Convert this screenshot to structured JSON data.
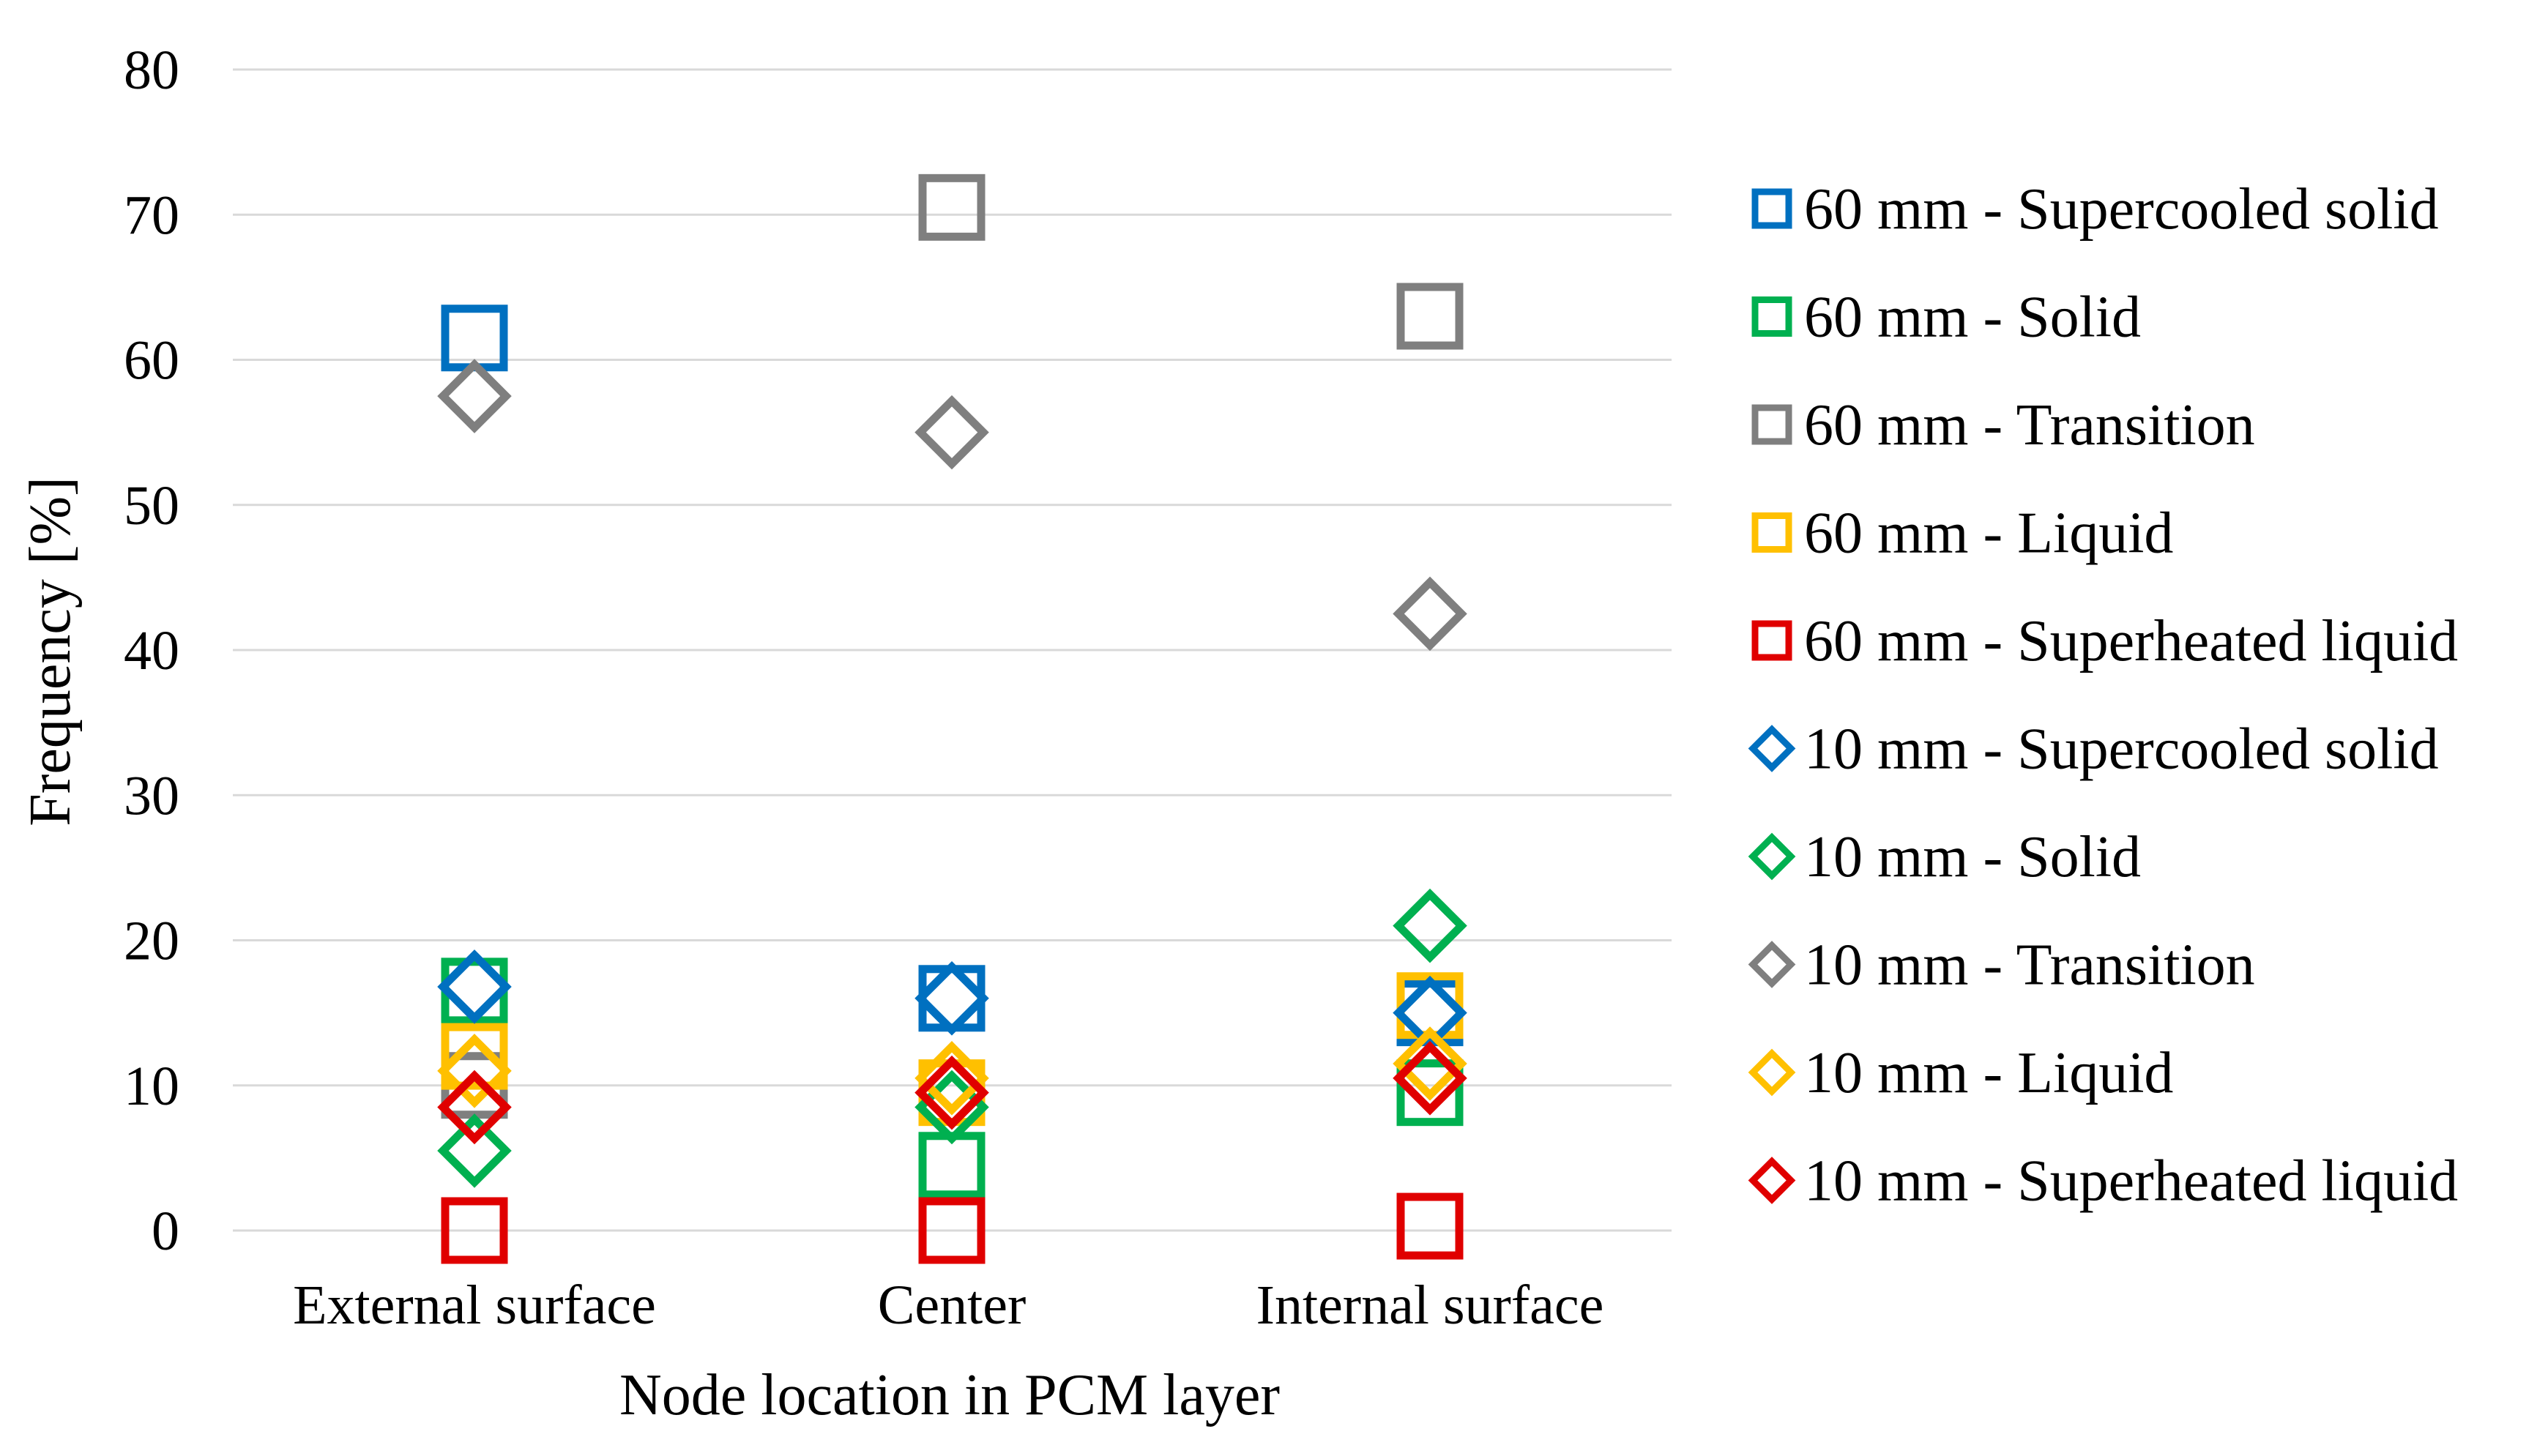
{
  "chart_data": {
    "type": "scatter",
    "title": "",
    "xlabel": "Node location in PCM layer",
    "ylabel": "Frequency [%]",
    "categories": [
      "External surface",
      "Center",
      "Internal surface"
    ],
    "ylim": [
      0,
      80
    ],
    "yticks": [
      0,
      10,
      20,
      30,
      40,
      50,
      60,
      70,
      80
    ],
    "grid": true,
    "legend_position": "right",
    "series": [
      {
        "name": "60 mm - Supercooled solid",
        "marker": "square",
        "color": "#0070C0",
        "values": [
          61.5,
          16.0,
          15.0
        ]
      },
      {
        "name": "60 mm - Solid",
        "marker": "square",
        "color": "#00B050",
        "values": [
          16.5,
          4.5,
          9.5
        ]
      },
      {
        "name": "60 mm - Transition",
        "marker": "square",
        "color": "#7F7F7F",
        "values": [
          10.0,
          70.5,
          63.0
        ]
      },
      {
        "name": "60 mm - Liquid",
        "marker": "square",
        "color": "#FFC000",
        "values": [
          12.0,
          9.5,
          15.5
        ]
      },
      {
        "name": "60 mm - Superheated liquid",
        "marker": "square",
        "color": "#E00000",
        "values": [
          0.0,
          0.0,
          0.3
        ]
      },
      {
        "name": "10 mm - Supercooled solid",
        "marker": "diamond",
        "color": "#0070C0",
        "values": [
          16.8,
          16.0,
          15.0
        ]
      },
      {
        "name": "10 mm - Solid",
        "marker": "diamond",
        "color": "#00B050",
        "values": [
          5.5,
          8.5,
          21.0
        ]
      },
      {
        "name": "10 mm - Transition",
        "marker": "diamond",
        "color": "#7F7F7F",
        "values": [
          57.5,
          55.0,
          42.5
        ]
      },
      {
        "name": "10 mm - Liquid",
        "marker": "diamond",
        "color": "#FFC000",
        "values": [
          11.0,
          10.5,
          11.5
        ]
      },
      {
        "name": "10 mm - Superheated liquid",
        "marker": "diamond",
        "color": "#E00000",
        "values": [
          8.5,
          9.5,
          10.5
        ]
      }
    ]
  }
}
